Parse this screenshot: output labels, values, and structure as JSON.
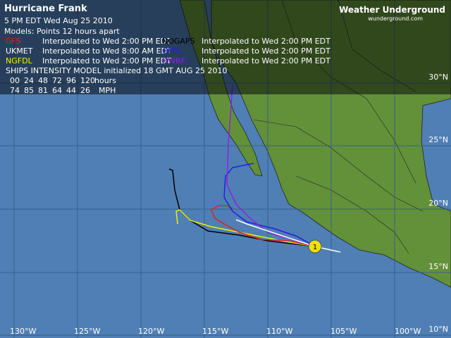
{
  "header": {
    "title": "Hurricane Frank",
    "issued": "5 PM EDT Wed Aug 25 2010",
    "models_note": "Models:  Points 12 hours apart"
  },
  "logo": {
    "name": "Weather Underground",
    "site": "wunderground.com"
  },
  "models": [
    {
      "name": "GFS",
      "note": "Interpolated to Wed 2:00 PM EDT",
      "color": "#e02020"
    },
    {
      "name": "NOGAPS",
      "note": "Interpolated to Wed 2:00 PM EDT",
      "color": "#000000"
    },
    {
      "name": "UKMET",
      "note": "Interpolated to Wed 8:00 AM EDT",
      "color": "#ffffff"
    },
    {
      "name": "GFDL",
      "note": "Interpolated to Wed 2:00 PM EDT",
      "color": "#2020e0"
    },
    {
      "name": "NGFDL",
      "note": "Interpolated to Wed 2:00 PM EDT",
      "color": "#f0f000"
    },
    {
      "name": "HWRF",
      "note": "Interpolated to Wed 2:00 PM EDT",
      "color": "#9020e0"
    }
  ],
  "ships": {
    "title": "SHIPS INTENSITY MODEL initialized 18 GMT AUG 25 2010",
    "hours": [
      "00",
      "24",
      "48",
      "72",
      "96",
      "120"
    ],
    "hours_unit": "hours",
    "speeds": [
      74,
      85,
      81,
      64,
      44,
      26
    ],
    "speeds_unit": "MPH"
  },
  "lat_labels": [
    "30°N",
    "25°N",
    "20°N",
    "15°N",
    "10°N"
  ],
  "lon_labels": [
    "130°W",
    "125°W",
    "120°W",
    "115°W",
    "110°W",
    "105°W",
    "100°W"
  ],
  "storm_marker": "1"
}
